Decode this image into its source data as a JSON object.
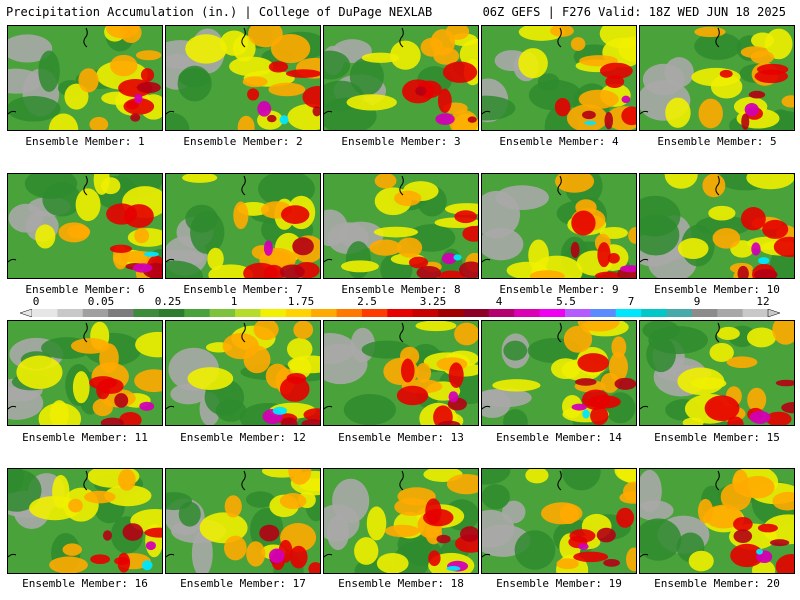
{
  "header": {
    "left": "Precipitation Accumulation (in.) | College of DuPage NEXLAB",
    "right": "06Z GEFS | F276 Valid: 18Z WED JUN 18 2025"
  },
  "caption_prefix": "Ensemble Member: ",
  "members": [
    1,
    2,
    3,
    4,
    5,
    6,
    7,
    8,
    9,
    10,
    11,
    12,
    13,
    14,
    15,
    16,
    17,
    18,
    19,
    20
  ],
  "colorbar": {
    "labels": [
      "0",
      "0.05",
      "0.25",
      "1",
      "1.75",
      "2.5",
      "3.25",
      "4",
      "5.5",
      "7",
      "9",
      "12"
    ],
    "colors": [
      "#e6e6e6",
      "#c8c8c8",
      "#a0a0a0",
      "#7d7d7d",
      "#3c8c3c",
      "#2e7d2e",
      "#4aa23a",
      "#7cc23a",
      "#b4dc28",
      "#f0f000",
      "#ffd200",
      "#ffaa00",
      "#ff7800",
      "#ff3c00",
      "#e60000",
      "#c80000",
      "#a00000",
      "#8c0028",
      "#b4006e",
      "#dc00b4",
      "#f000f0",
      "#b45aff",
      "#5a8cff",
      "#00e6ff",
      "#00c8c8",
      "#46aaaa",
      "#8c8c8c",
      "#a8a8a8",
      "#c8c8c8"
    ]
  },
  "colors": {
    "bg": "#ffffff",
    "text": "#000000",
    "border": "#000000",
    "low_gray": "#a8a8a8",
    "green_dark": "#2e8b2e",
    "green_mid": "#4aa23a",
    "yellow": "#f0f000",
    "orange": "#ffaa00",
    "red": "#e60000",
    "dark_red": "#b40014",
    "magenta": "#d200b4",
    "cyan": "#00e6ff"
  }
}
